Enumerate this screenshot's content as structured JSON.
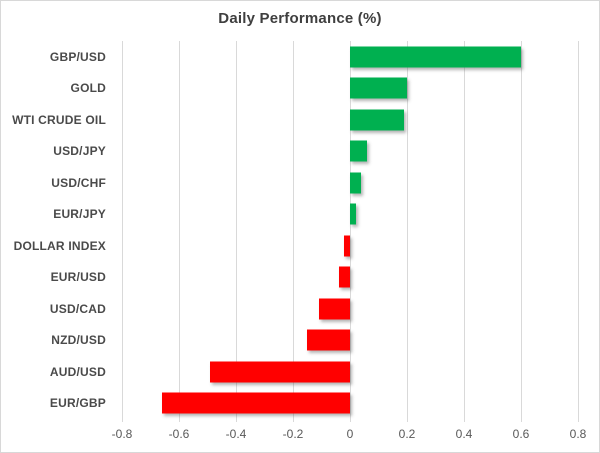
{
  "chart_data": {
    "type": "bar",
    "orientation": "horizontal",
    "title": "Daily Performance (%)",
    "categories": [
      "GBP/USD",
      "GOLD",
      "WTI CRUDE OIL",
      "USD/JPY",
      "USD/CHF",
      "EUR/JPY",
      "DOLLAR INDEX",
      "EUR/USD",
      "USD/CAD",
      "NZD/USD",
      "AUD/USD",
      "EUR/GBP"
    ],
    "values": [
      0.6,
      0.2,
      0.19,
      0.06,
      0.04,
      0.02,
      -0.02,
      -0.04,
      -0.11,
      -0.15,
      -0.49,
      -0.66
    ],
    "xlabel": "",
    "ylabel": "",
    "xlim": [
      -0.8,
      0.8
    ],
    "x_ticks": [
      -0.8,
      -0.6,
      -0.4,
      -0.2,
      0,
      0.2,
      0.4,
      0.6,
      0.8
    ],
    "x_tick_labels": [
      "-0.8",
      "-0.6",
      "-0.4",
      "-0.2",
      "0",
      "0.2",
      "0.4",
      "0.6",
      "0.8"
    ],
    "grid": "vertical-major-only",
    "legend": "none",
    "colors": {
      "positive": "#00B050",
      "negative": "#FF0000",
      "gridline": "#D9D9D9",
      "title": "#3F3F3F",
      "category_label": "#4A4A4A",
      "tick_label": "#595959",
      "border": "#D8D8D8",
      "background": "#FFFFFF"
    }
  }
}
